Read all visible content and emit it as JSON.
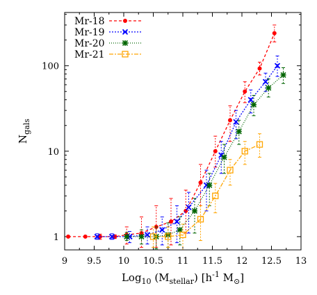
{
  "chart_data": {
    "type": "line",
    "xlabel": "Log",
    "xlabel_parts": {
      "log": "Log",
      "log_sub": "10",
      "open": " (M",
      "m_sub": "stellar",
      "mid": ") [h",
      "h_sup": "-1",
      "m": " M",
      "sun_sub": "⊙",
      "close": "]"
    },
    "ylabel": "N",
    "ylabel_sub": "gals",
    "xlim": [
      9,
      13
    ],
    "ylim": [
      0.7,
      420
    ],
    "yscale": "log",
    "xticks": [
      9,
      9.5,
      10,
      10.5,
      11,
      11.5,
      12,
      12.5,
      13
    ],
    "xtick_labels": [
      "9",
      "9.5",
      "10",
      "10.5",
      "11",
      "11.5",
      "12",
      "12.5",
      "13"
    ],
    "yticks": [
      1,
      10,
      100
    ],
    "ytick_labels": [
      "1",
      "10",
      "100"
    ],
    "legend_position": "top-left",
    "series": [
      {
        "name": "Mr-18",
        "color": "#ff0000",
        "marker": "circle",
        "dash": "4,3",
        "x": [
          9.06,
          9.35,
          9.6,
          9.85,
          10.05,
          10.3,
          10.55,
          10.8,
          11.05,
          11.3,
          11.55,
          11.8,
          12.05,
          12.3,
          12.55
        ],
        "y": [
          1.0,
          1.0,
          1.0,
          1.0,
          1.05,
          1.1,
          1.3,
          1.5,
          2.0,
          4.3,
          10,
          23,
          50,
          93,
          240
        ],
        "err_lo": [
          1.0,
          1.0,
          0.93,
          0.95,
          0.82,
          0.75,
          0.75,
          0.8,
          1.1,
          2.3,
          6.5,
          13,
          37,
          78,
          190
        ],
        "err_hi": [
          1.0,
          1.0,
          1.07,
          1.05,
          1.3,
          1.7,
          2.3,
          2.8,
          3.5,
          7.0,
          15,
          34,
          65,
          110,
          300
        ]
      },
      {
        "name": "Mr-19",
        "color": "#0000ff",
        "marker": "x",
        "dash": "2,2",
        "x": [
          9.55,
          9.8,
          10.1,
          10.4,
          10.65,
          10.9,
          11.1,
          11.4,
          11.65,
          11.9,
          12.15,
          12.4,
          12.6
        ],
        "y": [
          1.0,
          1.0,
          1.0,
          1.05,
          1.2,
          1.5,
          2.2,
          4.0,
          9.0,
          22,
          40,
          65,
          100
        ],
        "err_lo": [
          0.93,
          0.93,
          0.85,
          0.82,
          0.8,
          0.85,
          1.1,
          2.0,
          5.5,
          14,
          28,
          50,
          75
        ],
        "err_hi": [
          1.08,
          1.08,
          1.15,
          1.3,
          1.7,
          2.3,
          3.3,
          6.0,
          13,
          30,
          52,
          82,
          130
        ]
      },
      {
        "name": "Mr-20",
        "color": "#006400",
        "marker": "star",
        "dash": "1,2",
        "x": [
          10.05,
          10.3,
          10.55,
          10.75,
          10.95,
          11.2,
          11.45,
          11.7,
          11.95,
          12.2,
          12.45,
          12.7
        ],
        "y": [
          1.0,
          1.0,
          1.0,
          1.05,
          1.2,
          2.0,
          4.0,
          8.5,
          17,
          35,
          55,
          78
        ],
        "err_lo": [
          0.9,
          0.82,
          0.72,
          0.75,
          0.8,
          1.1,
          2.3,
          5.5,
          12,
          26,
          43,
          62
        ],
        "err_hi": [
          1.12,
          1.2,
          1.3,
          1.45,
          1.7,
          2.8,
          5.5,
          12,
          23,
          45,
          70,
          95
        ]
      },
      {
        "name": "Mr-21",
        "color": "#ffa500",
        "marker": "square",
        "dash": "6,2,2,2",
        "x": [
          10.5,
          10.75,
          11.0,
          11.3,
          11.55,
          11.8,
          12.05,
          12.3
        ],
        "y": [
          1.0,
          1.0,
          1.05,
          1.6,
          3.0,
          6.0,
          10,
          12
        ],
        "err_lo": [
          0.75,
          0.75,
          0.7,
          0.9,
          1.9,
          4.0,
          7.0,
          8.5
        ],
        "err_hi": [
          1.3,
          1.3,
          1.4,
          2.3,
          4.2,
          8.0,
          13,
          16
        ]
      }
    ]
  }
}
